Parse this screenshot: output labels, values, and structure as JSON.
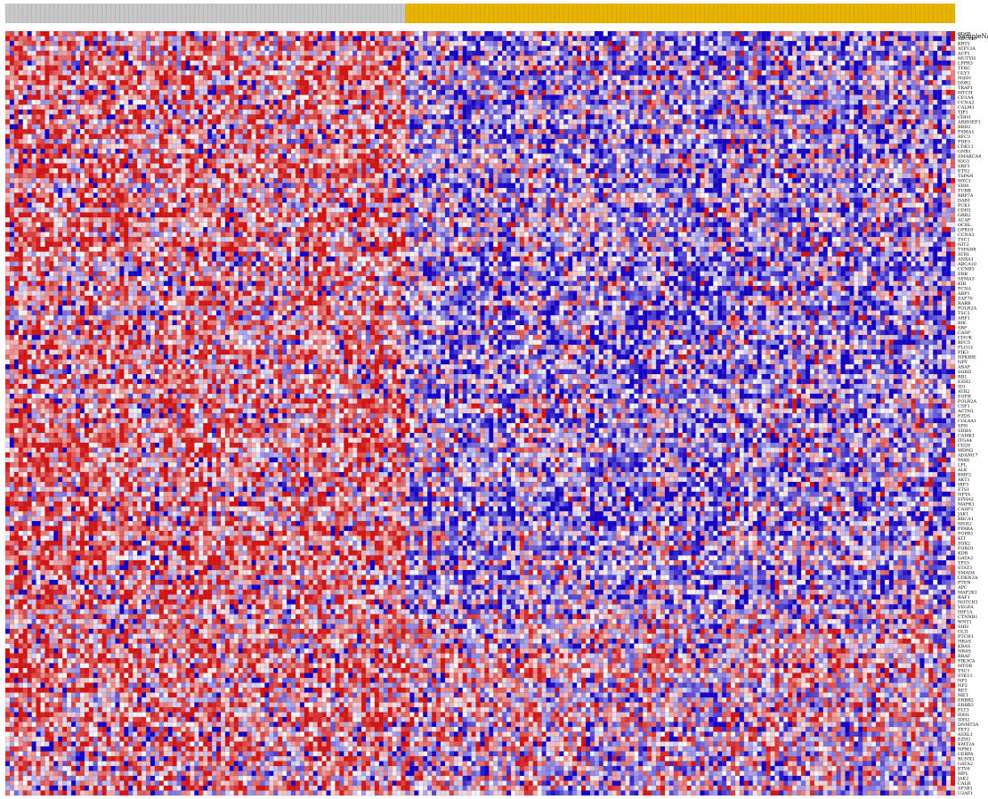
{
  "chart_data": {
    "type": "heatmap",
    "title": "",
    "xlabel": "",
    "ylabel": "",
    "header_label": "SampleName",
    "groups": [
      {
        "name": "",
        "color": "#c8c8c8",
        "count": 91
      },
      {
        "name": "",
        "color": "#e8b400",
        "count": 125
      }
    ],
    "colorscale": {
      "low": "#1400c8",
      "mid": "#ffffff",
      "high": "#d71414"
    },
    "row_labels": [
      "CD6B",
      "ABCA10",
      "KRT5",
      "ATP13A",
      "ACP1",
      "MUTYH",
      "LPPR3",
      "TFRC",
      "GLY3",
      "NQO1",
      "DDB2",
      "TRAP1",
      "MTCH",
      "CD1A4",
      "CCNA2",
      "CALM1",
      "TJP1",
      "CDH1",
      "ARHGEF1",
      "BRD2",
      "PSMA1",
      "RFC3",
      "PDE5",
      "CDK11",
      "GNB1",
      "SMARCA4",
      "IGG3",
      "SRF3",
      "ETS2",
      "TSPAN",
      "MYC1",
      "SRM",
      "TUBB",
      "RRP7A",
      "DAB1",
      "PCK1",
      "CDH1",
      "GRB2",
      "ACAP",
      "OCRL",
      "GPR19",
      "CCNA3",
      "TSC1",
      "NIT2",
      "TSPAN8",
      "ATR1",
      "ANXA1",
      "ABCA10",
      "CCNB3",
      "ERB",
      "SEMA3",
      "KIR",
      "PCNA",
      "ABP1",
      "ZAP70",
      "RARB",
      "POLR2A",
      "TSC2",
      "ARF1",
      "BIK",
      "SBF",
      "CASP",
      "CHUK",
      "RFC5",
      "PLCG1",
      "PIK3",
      "NFKBIE",
      "NPY",
      "ARAF",
      "SORD",
      "RB1",
      "EZH2",
      "ID1",
      "ATR2",
      "EGFR",
      "POLR2A",
      "CSF1",
      "ACTN1",
      "FZD5",
      "COL4A1",
      "SPN",
      "SDHA",
      "CAMK1",
      "ITGA4",
      "CD28",
      "MDM2",
      "ADAM17",
      "PAX6",
      "LPL",
      "ALK",
      "BMP2",
      "AKT1",
      "IRF3",
      "ETS1",
      "NFYA",
      "EPHA2",
      "MAPK1",
      "CASP3",
      "JAK1",
      "BRCA1",
      "MSH2",
      "PPARA",
      "FGFR1",
      "KIT",
      "SOX2",
      "FOXO1",
      "KDR",
      "GATA3",
      "TP53",
      "STAT3",
      "SMAD4",
      "CDKN2A",
      "PTEN",
      "APC",
      "MAP2K1",
      "RAF1",
      "NOTCH1",
      "VEGFA",
      "HIF1A",
      "CTNNB1",
      "WNT1",
      "SHH",
      "GLI1",
      "PTCH1",
      "HRAS",
      "KRAS",
      "NRAS",
      "BRAF",
      "PIK3CA",
      "MTOR",
      "TSC1",
      "STK11",
      "NF1",
      "NF2",
      "RET",
      "MET",
      "ERBB2",
      "ERBB3",
      "FLT3",
      "IDH1",
      "IDH2",
      "DNMT3A",
      "TET2",
      "ASXL1",
      "EZH2",
      "KMT2A",
      "NPM1",
      "CEBPA",
      "RUNX1",
      "GATA2",
      "ETV6",
      "MPL",
      "JAK2",
      "CALR",
      "SF3B1",
      "U2AF1"
    ]
  }
}
